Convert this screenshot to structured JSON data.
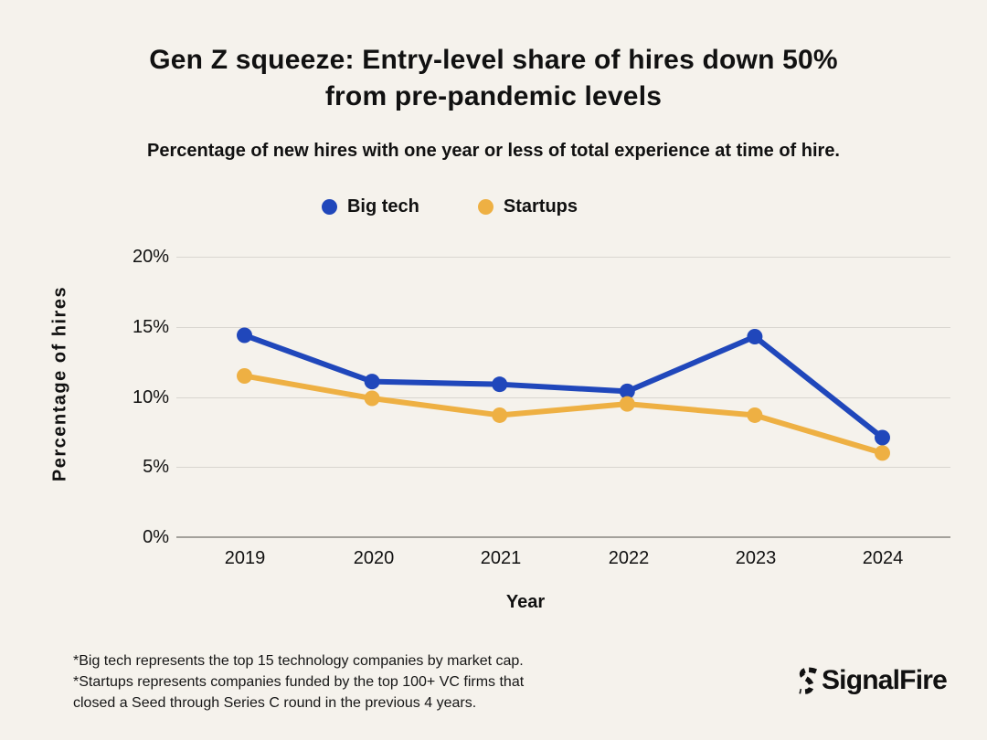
{
  "title": {
    "lines": [
      "Gen Z squeeze: Entry-level share of hires down 50%",
      "from pre-pandemic levels"
    ]
  },
  "subtitle": "Percentage of new hires with one year or less of total experience at time of hire.",
  "legend": {
    "items": [
      {
        "label": "Big tech",
        "color": "#2047bb"
      },
      {
        "label": "Startups",
        "color": "#eeb043"
      }
    ]
  },
  "axes": {
    "x_label": "Year",
    "y_label": "Percentage of hires"
  },
  "footnote": {
    "lines": [
      "*Big tech represents the top 15 technology companies by market cap.",
      "*Startups represents companies funded by the top 100+ VC firms that",
      "closed a Seed through Series C round in the previous 4 years."
    ]
  },
  "brand": {
    "name": "SignalFire"
  },
  "colors": {
    "background": "#f5f2ec",
    "text": "#111111",
    "gridline": "#d9d6d0",
    "axis_line": "#a3a19b",
    "big_tech": "#2047bb",
    "startups": "#eeb043"
  },
  "chart_data": {
    "type": "line",
    "title": "Gen Z squeeze: Entry-level share of hires down 50% from pre-pandemic levels",
    "subtitle": "Percentage of new hires with one year or less of total experience at time of hire.",
    "categories": [
      "2019",
      "2020",
      "2021",
      "2022",
      "2023",
      "2024"
    ],
    "series": [
      {
        "name": "Big tech",
        "color": "#2047bb",
        "values": [
          14.4,
          11.1,
          10.9,
          10.4,
          14.3,
          7.1
        ]
      },
      {
        "name": "Startups",
        "color": "#eeb043",
        "values": [
          11.5,
          9.9,
          8.7,
          9.5,
          8.7,
          6.0
        ]
      }
    ],
    "xlabel": "Year",
    "ylabel": "Percentage of hires",
    "ylim": [
      0,
      20
    ],
    "ytick_labels": [
      "20%",
      "15%",
      "10%",
      "5%",
      "0%"
    ],
    "grid": true,
    "legend_position": "top"
  }
}
